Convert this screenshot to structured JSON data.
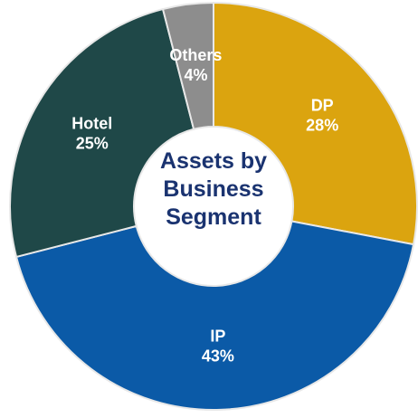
{
  "chart_data": {
    "type": "donut",
    "title": "Assets by Business Segment",
    "categories": [
      "DP",
      "IP",
      "Hotel",
      "Others"
    ],
    "values": [
      28,
      43,
      25,
      4
    ],
    "value_labels": [
      "28%",
      "43%",
      "25%",
      "4%"
    ],
    "colors": [
      "#dba40f",
      "#0b5aa7",
      "#1f4848",
      "#8d8d8d"
    ]
  }
}
